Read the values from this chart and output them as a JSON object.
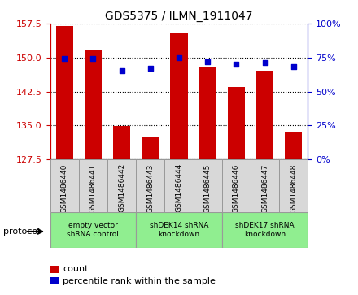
{
  "title": "GDS5375 / ILMN_1911047",
  "samples": [
    "GSM1486440",
    "GSM1486441",
    "GSM1486442",
    "GSM1486443",
    "GSM1486444",
    "GSM1486445",
    "GSM1486446",
    "GSM1486447",
    "GSM1486448"
  ],
  "counts": [
    157.0,
    151.5,
    134.8,
    132.5,
    155.5,
    147.8,
    143.5,
    147.0,
    133.5
  ],
  "percentiles": [
    74,
    74,
    65,
    67,
    75,
    72,
    70,
    71,
    68
  ],
  "ylim_left": [
    127.5,
    157.5
  ],
  "ylim_right": [
    0,
    100
  ],
  "yticks_left": [
    127.5,
    135.0,
    142.5,
    150.0,
    157.5
  ],
  "yticks_right": [
    0,
    25,
    50,
    75,
    100
  ],
  "bar_color": "#CC0000",
  "dot_color": "#0000CC",
  "protocol_groups": [
    {
      "label": "empty vector\nshRNA control",
      "start": 0,
      "end": 3
    },
    {
      "label": "shDEK14 shRNA\nknockdown",
      "start": 3,
      "end": 6
    },
    {
      "label": "shDEK17 shRNA\nknockdown",
      "start": 6,
      "end": 9
    }
  ],
  "group_color": "#90EE90",
  "protocol_label": "protocol",
  "legend_count_label": "count",
  "legend_pct_label": "percentile rank within the sample",
  "bg_color": "#FFFFFF"
}
